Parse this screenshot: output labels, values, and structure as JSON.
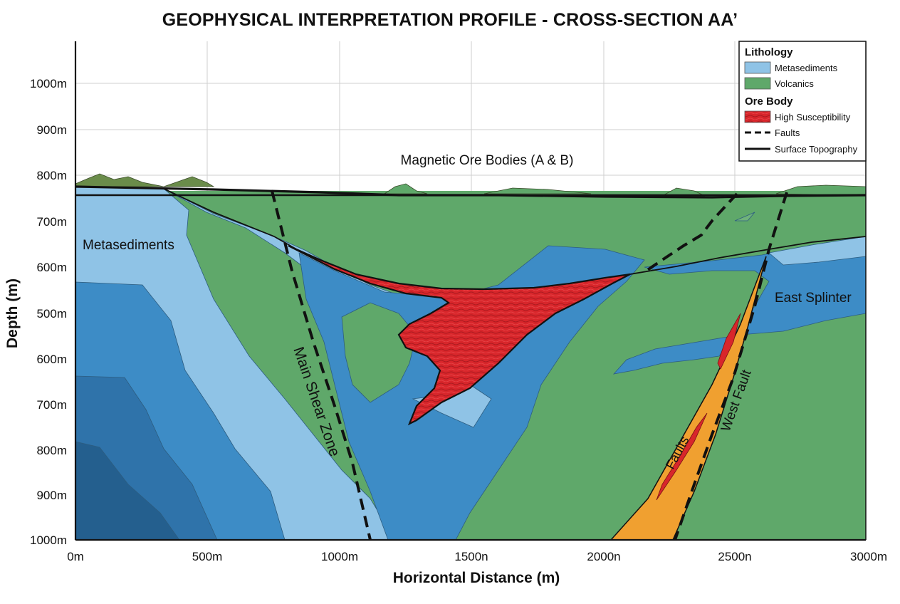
{
  "title": "GEOPHYSICAL INTERPRETATION PROFILE - CROSS-SECTION AA’",
  "x_axis": {
    "label": "Horizontal Distance (m)",
    "ticks": [
      "0m",
      "500m",
      "1000m",
      "1500n",
      "2000n",
      "2500n",
      "3000m"
    ]
  },
  "y_axis": {
    "label": "Depth (m)",
    "ticks": [
      "1000m",
      "900m",
      "800m",
      "700m",
      "600m",
      "500m",
      "600m",
      "700m",
      "800m",
      "900m",
      "1000m"
    ]
  },
  "annotations": {
    "ore_bodies": "Magnetic Ore Bodies (A & B)",
    "metasediments": "Metasediments",
    "east_splinter": "East Splinter",
    "main_shear_zone": "Main Shear Zone",
    "west_fault": "West Fault",
    "faults": "Faults"
  },
  "legend": {
    "lithology_heading": "Lithology",
    "metasediments": "Metasediments",
    "volcanics": "Volcanics",
    "ore_heading": "Ore Body",
    "high_susceptibility": "High Susceptibility",
    "faults": "Faults",
    "surface_topography": "Surface Topography"
  },
  "colors": {
    "volcanics": "#5fa86a",
    "metasediments": "#8fc3e6",
    "meta_mid": "#3d8cc6",
    "meta_dark": "#2f73aa",
    "meta_deep": "#245f8e",
    "ore": "#d8262b",
    "fault_zone": "#f0a030",
    "grid": "#cfcfcf"
  }
}
